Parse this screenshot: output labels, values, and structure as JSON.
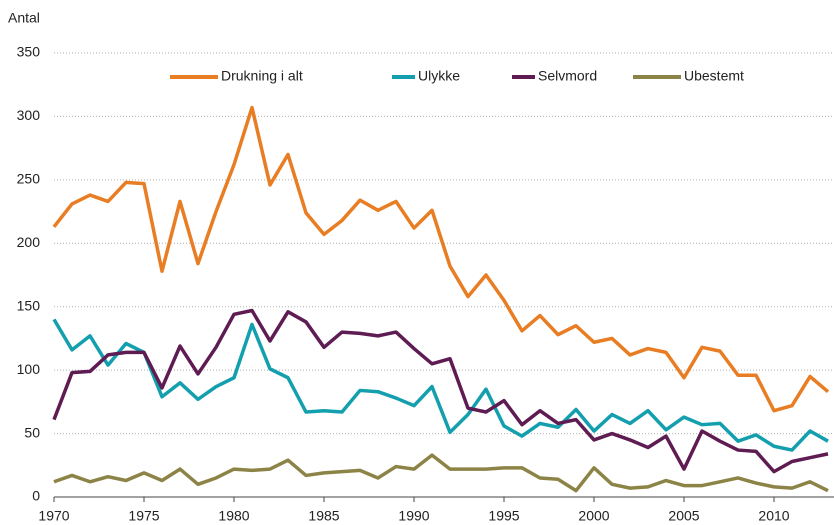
{
  "chart_data": {
    "type": "line",
    "y_label": "Antal",
    "x": [
      1970,
      1971,
      1972,
      1973,
      1974,
      1975,
      1976,
      1977,
      1978,
      1979,
      1980,
      1981,
      1982,
      1983,
      1984,
      1985,
      1986,
      1987,
      1988,
      1989,
      1990,
      1991,
      1992,
      1993,
      1994,
      1995,
      1996,
      1997,
      1998,
      1999,
      2000,
      2001,
      2002,
      2003,
      2004,
      2005,
      2006,
      2007,
      2008,
      2009,
      2010,
      2011,
      2012,
      2013
    ],
    "series": [
      {
        "name": "Drukning i alt",
        "color": "#e87d23",
        "values": [
          213,
          231,
          238,
          233,
          248,
          247,
          178,
          233,
          184,
          225,
          262,
          307,
          246,
          270,
          224,
          207,
          218,
          234,
          226,
          233,
          212,
          226,
          182,
          158,
          175,
          155,
          131,
          143,
          128,
          135,
          122,
          125,
          112,
          117,
          114,
          94,
          118,
          115,
          96,
          96,
          68,
          72,
          95,
          83
        ]
      },
      {
        "name": "Ulykke",
        "color": "#139fae",
        "values": [
          140,
          116,
          127,
          104,
          121,
          114,
          79,
          90,
          77,
          87,
          94,
          136,
          101,
          94,
          67,
          68,
          67,
          84,
          83,
          78,
          72,
          87,
          51,
          65,
          85,
          56,
          48,
          58,
          55,
          69,
          52,
          65,
          58,
          68,
          53,
          63,
          57,
          58,
          44,
          49,
          40,
          37,
          52,
          44
        ]
      },
      {
        "name": "Selvmord",
        "color": "#5e1c52",
        "values": [
          61,
          98,
          99,
          112,
          114,
          114,
          86,
          119,
          97,
          118,
          144,
          147,
          123,
          146,
          138,
          118,
          130,
          129,
          127,
          130,
          117,
          105,
          109,
          70,
          67,
          76,
          57,
          68,
          58,
          61,
          45,
          50,
          45,
          39,
          48,
          22,
          52,
          44,
          37,
          36,
          20,
          28,
          31,
          34
        ]
      },
      {
        "name": "Ubestemt",
        "color": "#8c8446",
        "values": [
          12,
          17,
          12,
          16,
          13,
          19,
          13,
          22,
          10,
          15,
          22,
          21,
          22,
          29,
          17,
          19,
          20,
          21,
          15,
          24,
          22,
          33,
          22,
          22,
          22,
          23,
          23,
          15,
          14,
          5,
          23,
          10,
          7,
          8,
          13,
          9,
          9,
          12,
          15,
          11,
          8,
          7,
          12,
          5
        ]
      }
    ],
    "xlim": [
      1970,
      2013
    ],
    "xticks": [
      1970,
      1975,
      1980,
      1985,
      1990,
      1995,
      2000,
      2005,
      2010
    ],
    "ylim": [
      0,
      350
    ],
    "yticks": [
      0,
      50,
      100,
      150,
      200,
      250,
      300,
      350
    ],
    "grid": true,
    "legend": "top"
  }
}
